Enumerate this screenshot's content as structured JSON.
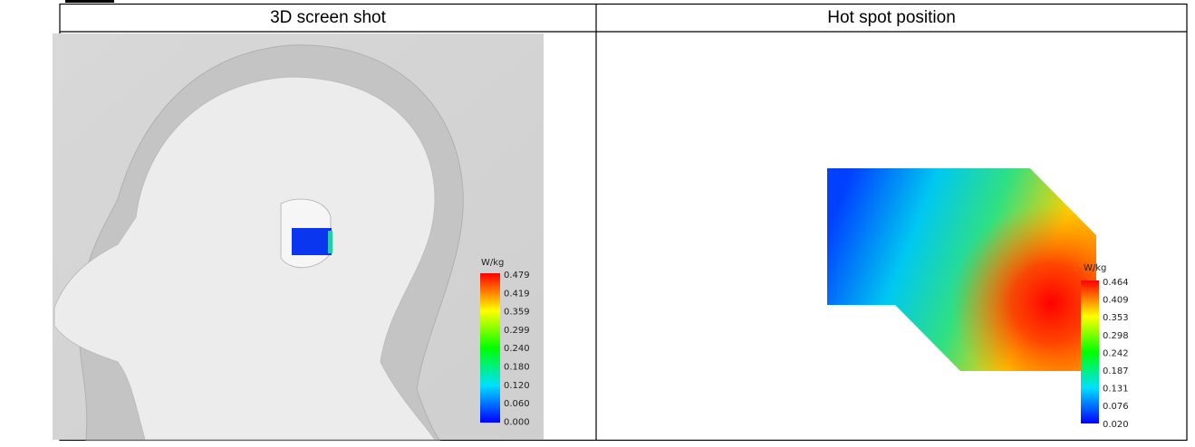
{
  "table": {
    "headers": [
      "3D screen shot",
      "Hot spot position"
    ]
  },
  "left_image": {
    "unit": "W/kg",
    "scale_labels": [
      "0.479",
      "0.419",
      "0.359",
      "0.299",
      "0.240",
      "0.180",
      "0.120",
      "0.060",
      "0.000"
    ]
  },
  "right_image": {
    "unit": "W/kg",
    "scale_labels": [
      "0.464",
      "0.409",
      "0.353",
      "0.298",
      "0.242",
      "0.187",
      "0.131",
      "0.076",
      "0.020"
    ]
  }
}
